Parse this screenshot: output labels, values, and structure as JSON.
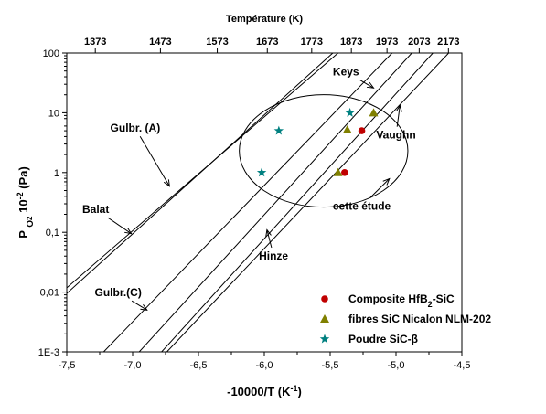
{
  "chart_data": {
    "type": "scatter",
    "xlabel": "-10000/T (K",
    "xlabel_sup": "-1",
    "xlabel_close": ")",
    "ylabel": "P",
    "ylabel_sub": "O",
    "ylabel_sub2": "2",
    "ylabel_rest": " 10",
    "ylabel_sup": "-2",
    "ylabel_unit": " (Pa)",
    "xlim": [
      -7.5,
      -4.5
    ],
    "ylim": [
      0.001,
      100
    ],
    "yscale": "log",
    "x_ticks": [
      -7.5,
      -7.0,
      -6.5,
      -6.0,
      -5.5,
      -5.0,
      -4.5
    ],
    "x_tick_labels": [
      "-7,5",
      "-7,0",
      "-6,5",
      "-6,0",
      "-5,5",
      "-5,0",
      "-4,5"
    ],
    "y_ticks": [
      0.001,
      0.01,
      0.1,
      1,
      10,
      100
    ],
    "y_tick_labels": [
      "1E-3",
      "0,01",
      "0,1",
      "1",
      "10",
      "100"
    ],
    "top_axis": {
      "title": "Température (K)",
      "ticks": [
        1373,
        1473,
        1573,
        1673,
        1773,
        1873,
        1973,
        2073,
        2173
      ]
    },
    "lines": [
      {
        "name": "Balat",
        "x": [
          -7.5,
          -5.48
        ],
        "y": [
          0.0095,
          100
        ]
      },
      {
        "name": "Gulbr. (A)",
        "x": [
          -7.5,
          -5.44
        ],
        "y": [
          0.0118,
          100
        ]
      },
      {
        "name": "Gulbr. (C)",
        "x": [
          -7.22,
          -5.03
        ],
        "y": [
          0.001,
          100
        ]
      },
      {
        "name": "Hinze",
        "x": [
          -6.95,
          -4.88
        ],
        "y": [
          0.001,
          100
        ]
      },
      {
        "name": "Keys",
        "x": [
          -6.78,
          -4.72
        ],
        "y": [
          0.001,
          100
        ]
      },
      {
        "name": "Vaughn",
        "x": [
          -6.74,
          -4.6
        ],
        "y": [
          0.001,
          100
        ]
      }
    ],
    "ellipse": {
      "label": "cette étude",
      "cx": -5.55,
      "cy": 2.3,
      "rx_data": 0.64,
      "ry_decades": 0.94
    },
    "annotations": [
      {
        "text": "Gulbr. (A)",
        "x": -6.98,
        "y": 4.8,
        "arrow_to_x": -6.72,
        "arrow_to_y": 0.59
      },
      {
        "text": "Balat",
        "x": -7.28,
        "y": 0.21,
        "arrow_to_x": -7.01,
        "arrow_to_y": 0.095
      },
      {
        "text": "Gulbr.(C)",
        "x": -7.11,
        "y": 0.0085,
        "arrow_to_x": -6.89,
        "arrow_to_y": 0.005
      },
      {
        "text": "Hinze",
        "x": -5.93,
        "y": 0.035,
        "arrow_to_x": -5.98,
        "arrow_to_y": 0.11
      },
      {
        "text": "Keys",
        "x": -5.38,
        "y": 42,
        "arrow_to_x": -5.17,
        "arrow_to_y": 26
      },
      {
        "text": "Vaughn",
        "x": -5.0,
        "y": 3.7,
        "arrow_to_x": -4.97,
        "arrow_to_y": 13.3
      },
      {
        "text": "cette étude",
        "x": -5.26,
        "y": 0.24,
        "arrow_to_x": -5.05,
        "arrow_to_y": 0.79
      }
    ],
    "series": [
      {
        "name": "Composite HfB",
        "name_sub": "2",
        "name_rest": "-SiC",
        "marker": "circle",
        "color": "#c00000",
        "x": [
          -5.39,
          -5.26
        ],
        "y": [
          1.0,
          5.0
        ]
      },
      {
        "name": "fibres SiC Nicalon NLM-202",
        "marker": "triangle",
        "color": "#808000",
        "x": [
          -5.44,
          -5.37,
          -5.17
        ],
        "y": [
          1.0,
          5.2,
          10.0
        ]
      },
      {
        "name": "Poudre SiC-β",
        "marker": "star",
        "color": "#008080",
        "x": [
          -6.02,
          -5.89,
          -5.35
        ],
        "y": [
          1.0,
          5.0,
          10.0
        ]
      }
    ],
    "legend_position": "bottom-right",
    "grid": false
  }
}
